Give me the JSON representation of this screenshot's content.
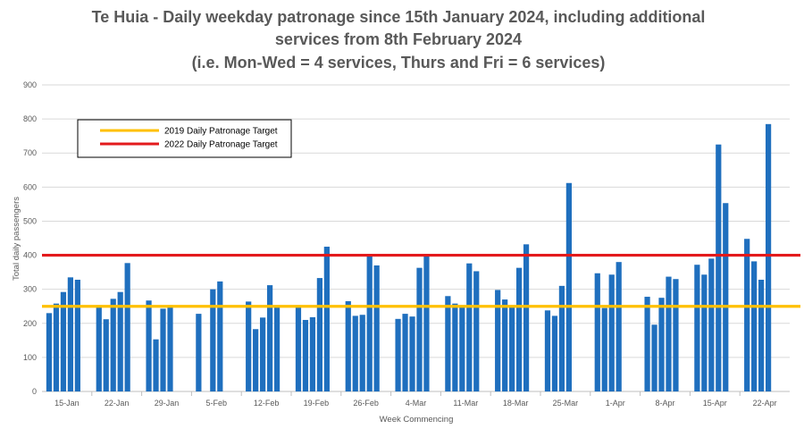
{
  "chart_data": {
    "type": "bar",
    "title_lines": [
      "Te Huia - Daily weekday patronage since 15th January 2024, including additional",
      "services from 8th February 2024",
      "(i.e. Mon-Wed = 4 services, Thurs and Fri = 6 services)"
    ],
    "xlabel": "Week Commencing",
    "ylabel": "Total daily passengers",
    "ylim": [
      0,
      900
    ],
    "yticks": [
      0,
      100,
      200,
      300,
      400,
      500,
      600,
      700,
      800,
      900
    ],
    "grid": true,
    "bar_color": "#1f6fbe",
    "categories": [
      "15-Jan",
      "22-Jan",
      "29-Jan",
      "5-Feb",
      "12-Feb",
      "19-Feb",
      "26-Feb",
      "4-Mar",
      "11-Mar",
      "18-Mar",
      "25-Mar",
      "1-Apr",
      "8-Apr",
      "15-Apr",
      "22-Apr"
    ],
    "series": [
      {
        "values": [
          [
            230,
            258,
            292,
            335,
            328
          ],
          [
            248,
            212,
            272,
            292,
            377
          ],
          [
            267,
            153,
            243,
            248,
            null
          ],
          [
            228,
            null,
            300,
            323,
            null
          ],
          [
            264,
            183,
            217,
            312,
            248
          ],
          [
            248,
            210,
            218,
            333,
            425
          ],
          [
            265,
            222,
            225,
            398,
            370
          ],
          [
            213,
            228,
            220,
            363,
            397
          ],
          [
            280,
            258,
            250,
            376,
            353
          ],
          [
            298,
            270,
            250,
            363,
            432
          ],
          [
            238,
            222,
            310,
            612,
            null
          ],
          [
            347,
            245,
            343,
            380,
            null
          ],
          [
            278,
            196,
            275,
            337,
            330
          ],
          [
            372,
            343,
            390,
            725,
            553
          ],
          [
            448,
            382,
            328,
            785,
            null
          ]
        ]
      }
    ],
    "reference_lines": [
      {
        "name": "2019 Daily Patronage Target",
        "value": 250,
        "color": "#ffc000"
      },
      {
        "name": "2022 Daily Patronage Target",
        "value": 400,
        "color": "#e31a1c"
      }
    ],
    "legend_position": "top-left"
  }
}
